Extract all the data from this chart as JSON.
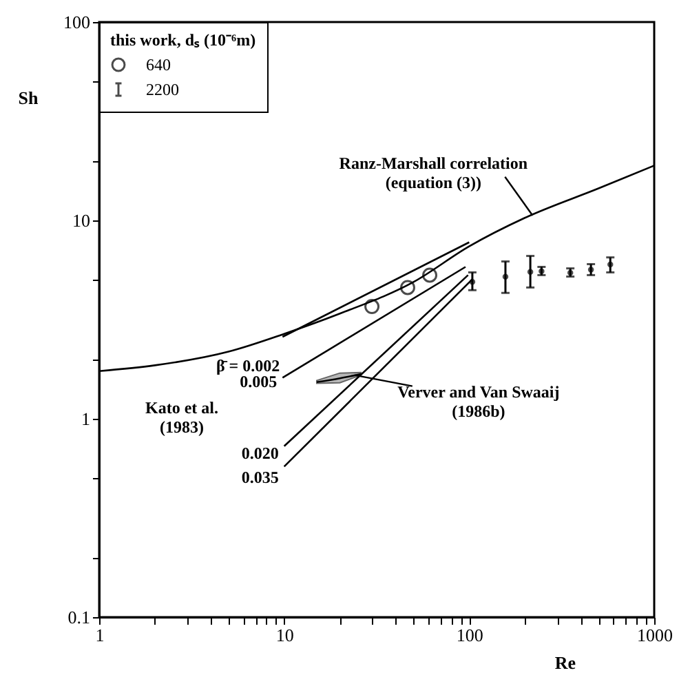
{
  "chart_data": {
    "type": "line",
    "xlabel": "Re",
    "ylabel": "Sh",
    "log": "xy",
    "grid": false,
    "legend": "top left",
    "legend_title": "this work, dₛ (10⁻⁶m)",
    "xlim": [
      1,
      1000
    ],
    "ylim": [
      0.1,
      100
    ],
    "xticks": [
      1,
      {
        "value": 2,
        "label": null
      },
      {
        "value": 3,
        "label": null
      },
      {
        "value": 4,
        "label": null
      },
      {
        "value": 5,
        "label": null
      },
      {
        "value": 6,
        "label": null
      },
      {
        "value": 7,
        "label": null
      },
      {
        "value": 8,
        "label": null
      },
      {
        "value": 9,
        "label": null
      },
      10,
      {
        "value": 20,
        "label": null
      },
      {
        "value": 30,
        "label": null
      },
      {
        "value": 40,
        "label": null
      },
      {
        "value": 50,
        "label": null
      },
      {
        "value": 60,
        "label": null
      },
      {
        "value": 70,
        "label": null
      },
      {
        "value": 80,
        "label": null
      },
      {
        "value": 90,
        "label": null
      },
      100,
      {
        "value": 200,
        "label": null
      },
      {
        "value": 300,
        "label": null
      },
      {
        "value": 400,
        "label": null
      },
      {
        "value": 500,
        "label": null
      },
      {
        "value": 600,
        "label": null
      },
      {
        "value": 700,
        "label": null
      },
      {
        "value": 800,
        "label": null
      },
      {
        "value": 900,
        "label": null
      },
      1000
    ],
    "yticks": [
      0.1,
      {
        "value": 0.2,
        "label": null
      },
      {
        "value": 0.5,
        "label": null
      },
      1,
      {
        "value": 2,
        "label": null
      },
      {
        "value": 5,
        "label": null
      },
      10,
      {
        "value": 20,
        "label": null
      },
      {
        "value": 50,
        "label": null
      },
      100
    ],
    "series": [
      {
        "type": "line",
        "color": "#000000",
        "x": [
          1,
          2,
          5,
          10,
          20,
          50,
          100,
          200,
          500,
          1000
        ],
        "values": [
          1.74,
          1.86,
          2.18,
          2.68,
          3.39,
          4.89,
          7.4,
          10.3,
          14.5,
          18.9
        ]
      },
      {
        "color": "#000000",
        "x": [
          9.8,
          100
        ],
        "values": [
          2.59,
          7.76
        ]
      },
      {
        "color": "#000000",
        "x": [
          9.8,
          95.5
        ],
        "values": [
          1.61,
          5.83
        ]
      },
      {
        "color": "#000000",
        "x": [
          10,
          98.6
        ],
        "values": [
          0.728,
          5.3
        ]
      },
      {
        "color": "#000000",
        "x": [
          10,
          104
        ],
        "values": [
          0.574,
          5.05
        ]
      },
      {
        "color": "#000000",
        "x": [
          15,
          20,
          26
        ],
        "values": [
          1.53,
          1.6,
          1.68
        ],
        "lower": [
          1.51,
          1.52,
          1.66
        ],
        "upper": [
          1.56,
          1.7,
          1.71
        ]
      },
      {
        "type": "scatter",
        "name": "640",
        "color": "#000000",
        "marker": "circle",
        "x": [
          29.8,
          46.5,
          61.2
        ],
        "values": [
          3.68,
          4.59,
          5.3
        ]
      },
      {
        "type": "scatter",
        "name": "2200",
        "color": "#000000",
        "x": [
          104,
          157,
          214,
          246,
          352,
          455,
          579
        ],
        "values": [
          4.9,
          5.2,
          5.5,
          5.55,
          5.45,
          5.65,
          6.0
        ],
        "errors": [
          [
            4.45,
            5.47
          ],
          [
            4.31,
            6.21
          ],
          [
            4.59,
            6.62
          ],
          [
            5.3,
            5.83
          ],
          [
            5.21,
            5.73
          ],
          [
            5.3,
            6.02
          ],
          [
            5.47,
            6.51
          ]
        ]
      }
    ],
    "annotations": [
      {
        "text": "Ranz-Marshall correlation\n(equation (3))",
        "x": 220,
        "y": 10.6
      },
      {
        "text": "β̄ = 0.002",
        "x": 9.8,
        "y": 2.59
      },
      {
        "text": "0.005",
        "x": 9.8,
        "y": 1.61
      },
      {
        "text": "0.020",
        "x": 10,
        "y": 0.728
      },
      {
        "text": "0.035",
        "x": 10,
        "y": 0.574
      },
      {
        "text": "Verver and Van Swaaij\n(1986b)",
        "x": 24,
        "y": 1.66
      },
      "Kato et al.\n(1983)"
    ]
  }
}
